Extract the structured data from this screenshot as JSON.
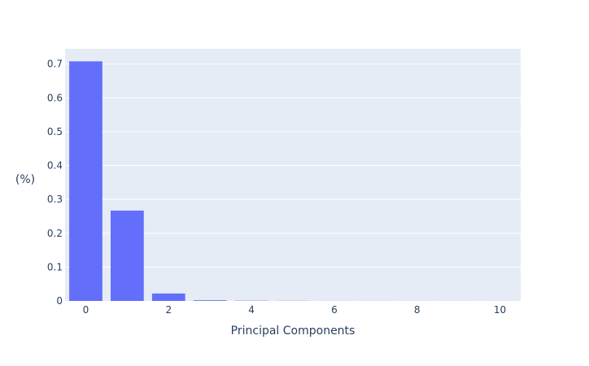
{
  "chart_data": {
    "type": "bar",
    "x": [
      0,
      1,
      2,
      3,
      4,
      5,
      6,
      7,
      8,
      9,
      10
    ],
    "values": [
      0.708,
      0.267,
      0.022,
      0.002,
      0.0007,
      0.0004,
      0.0002,
      0.0002,
      0.0001,
      0.0001,
      0.0001
    ],
    "xlabel": "Principal Components",
    "ylabel": "(%)",
    "xlim": [
      -0.5,
      10.5
    ],
    "ylim": [
      0,
      0.745
    ],
    "xticks": [
      0,
      2,
      4,
      6,
      8,
      10
    ],
    "xtick_labels": [
      "0",
      "2",
      "4",
      "6",
      "8",
      "10"
    ],
    "yticks": [
      0,
      0.1,
      0.2,
      0.3,
      0.4,
      0.5,
      0.6,
      0.7
    ],
    "ytick_labels": [
      "0",
      "0.1",
      "0.2",
      "0.3",
      "0.4",
      "0.5",
      "0.6",
      "0.7"
    ],
    "grid": true,
    "colors": {
      "bar": "#636efa",
      "plot_bg": "#e5ecf6",
      "grid": "#ffffff",
      "text": "#2a3f5f"
    }
  }
}
